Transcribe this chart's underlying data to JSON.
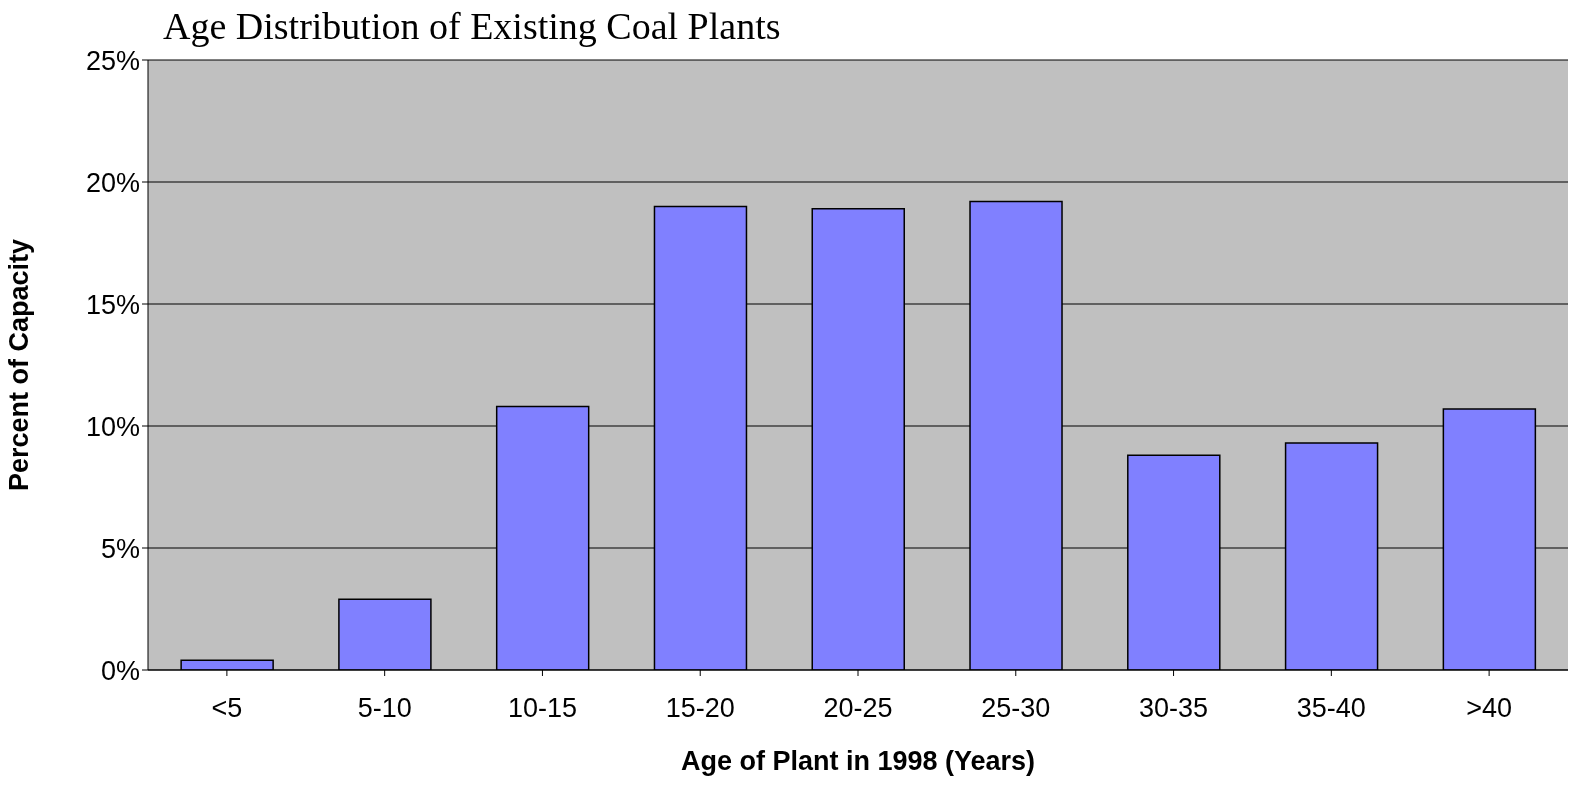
{
  "chart_data": {
    "type": "bar",
    "title": "Age Distribution of Existing Coal Plants",
    "xlabel": "Age of Plant in 1998 (Years)",
    "ylabel": "Percent of Capacity",
    "categories": [
      "<5",
      "5-10",
      "10-15",
      "15-20",
      "20-25",
      "25-30",
      "30-35",
      "35-40",
      ">40"
    ],
    "values": [
      0.4,
      2.9,
      10.8,
      19.0,
      18.9,
      19.2,
      8.8,
      9.3,
      10.7
    ],
    "color": "#8080ff",
    "ylim": [
      0,
      25
    ],
    "yticks": [
      {
        "value": 0,
        "label": "0%"
      },
      {
        "value": 5,
        "label": "5%"
      },
      {
        "value": 10,
        "label": "10%"
      },
      {
        "value": 15,
        "label": "15%"
      },
      {
        "value": 20,
        "label": "20%"
      },
      {
        "value": 25,
        "label": "25%"
      }
    ],
    "grid": "y"
  }
}
